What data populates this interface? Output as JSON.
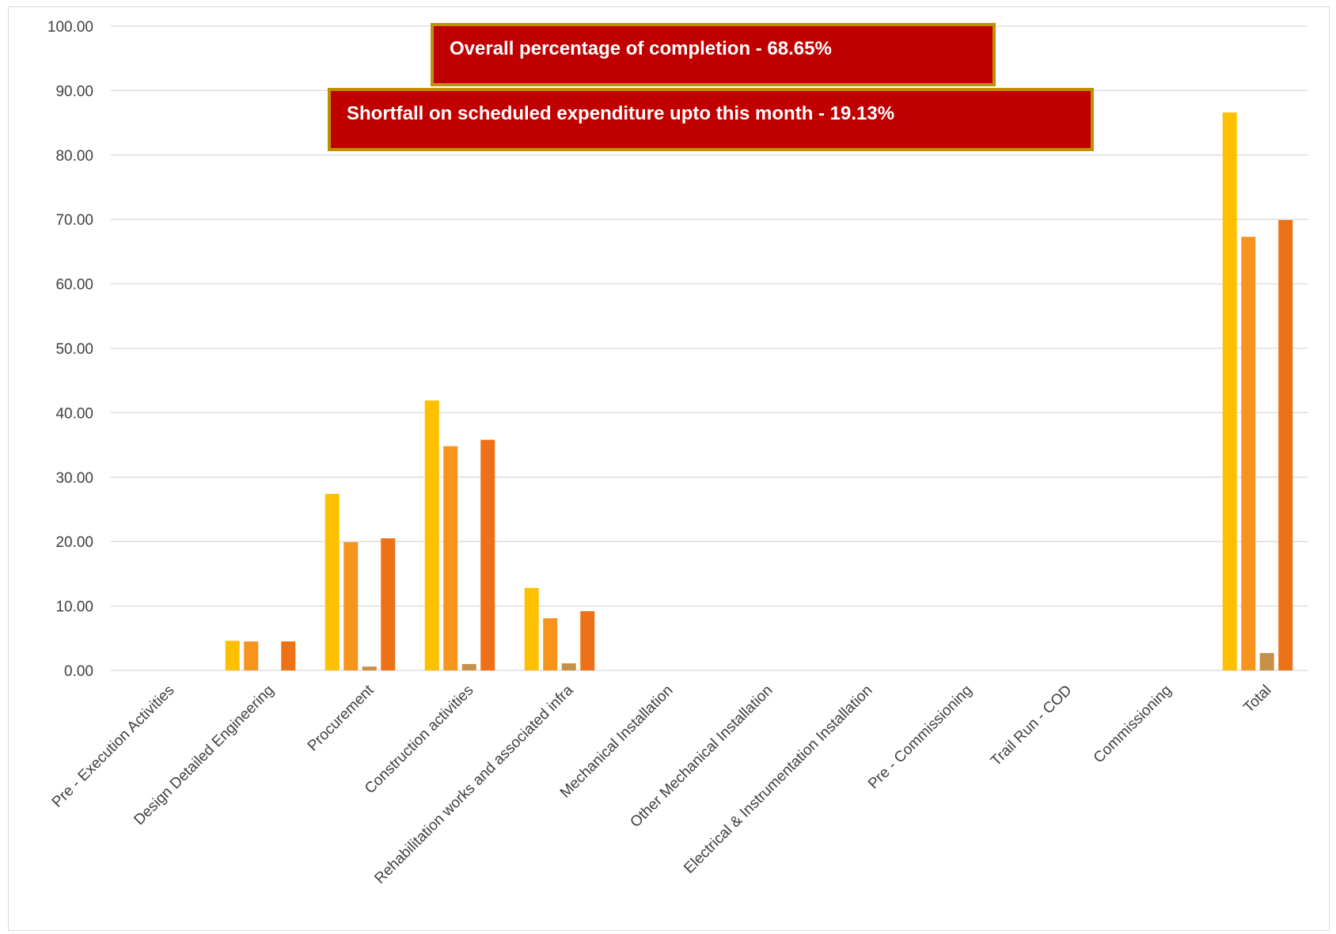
{
  "callouts": {
    "completion": "Overall percentage of completion -  68.65%",
    "shortfall": "Shortfall on scheduled expenditure upto this month  - 19.13%"
  },
  "chart_data": {
    "type": "bar",
    "categories": [
      "Pre - Execution Activities",
      "Design Detailed Engineering",
      "Procurement",
      "Construction activities",
      "Rehabilitation works and associated infra",
      "Mechanical Installation",
      "Other Mechanical Installation",
      "Electrical & Instrumentation Installation",
      "Pre - Commissioning",
      "Trail Run - COD",
      "Commissioning",
      "Total"
    ],
    "series": [
      {
        "color": "#ffc000",
        "values": [
          0,
          4.6,
          27.4,
          41.9,
          12.8,
          0,
          0,
          0,
          0,
          0,
          0,
          86.6
        ]
      },
      {
        "color": "#f7941d",
        "values": [
          0,
          4.5,
          19.9,
          34.8,
          8.1,
          0,
          0,
          0,
          0,
          0,
          0,
          67.3
        ]
      },
      {
        "color": "#c8914a",
        "values": [
          0,
          0,
          0.6,
          1.0,
          1.1,
          0,
          0,
          0,
          0,
          0,
          0,
          2.7
        ]
      },
      {
        "color": "#ed7117",
        "values": [
          0,
          4.5,
          20.5,
          35.8,
          9.2,
          0,
          0,
          0,
          0,
          0,
          0,
          69.9
        ]
      }
    ],
    "y_ticks": [
      "0.00",
      "10.00",
      "20.00",
      "30.00",
      "40.00",
      "50.00",
      "60.00",
      "70.00",
      "80.00",
      "90.00",
      "100.00"
    ],
    "ylim": [
      0,
      100
    ],
    "grid": true,
    "colors": {
      "gridline": "#d9d9d9",
      "tick_text": "#404040",
      "callout_fill": "#c00000",
      "callout_border": "#bf9000"
    }
  }
}
